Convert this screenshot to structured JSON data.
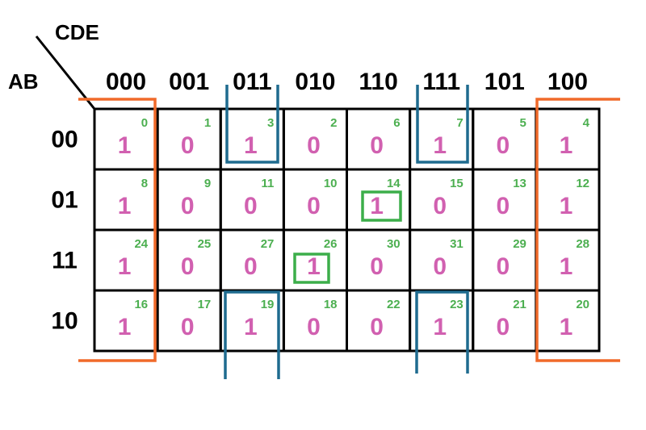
{
  "labels": {
    "columns_variable": "CDE",
    "rows_variable": "AB"
  },
  "columns": [
    "000",
    "001",
    "011",
    "010",
    "110",
    "111",
    "101",
    "100"
  ],
  "rows": [
    {
      "label": "00",
      "cells": [
        {
          "index": 0,
          "value": 1
        },
        {
          "index": 1,
          "value": 0
        },
        {
          "index": 3,
          "value": 1
        },
        {
          "index": 2,
          "value": 0
        },
        {
          "index": 6,
          "value": 0
        },
        {
          "index": 7,
          "value": 1
        },
        {
          "index": 5,
          "value": 0
        },
        {
          "index": 4,
          "value": 1
        }
      ]
    },
    {
      "label": "01",
      "cells": [
        {
          "index": 8,
          "value": 1
        },
        {
          "index": 9,
          "value": 0
        },
        {
          "index": 11,
          "value": 0
        },
        {
          "index": 10,
          "value": 0
        },
        {
          "index": 14,
          "value": 1
        },
        {
          "index": 15,
          "value": 0
        },
        {
          "index": 13,
          "value": 0
        },
        {
          "index": 12,
          "value": 1
        }
      ]
    },
    {
      "label": "11",
      "cells": [
        {
          "index": 24,
          "value": 1
        },
        {
          "index": 25,
          "value": 0
        },
        {
          "index": 27,
          "value": 0
        },
        {
          "index": 26,
          "value": 1
        },
        {
          "index": 30,
          "value": 0
        },
        {
          "index": 31,
          "value": 0
        },
        {
          "index": 29,
          "value": 0
        },
        {
          "index": 28,
          "value": 1
        }
      ]
    },
    {
      "label": "10",
      "cells": [
        {
          "index": 16,
          "value": 1
        },
        {
          "index": 17,
          "value": 0
        },
        {
          "index": 19,
          "value": 1
        },
        {
          "index": 18,
          "value": 0
        },
        {
          "index": 22,
          "value": 0
        },
        {
          "index": 23,
          "value": 1
        },
        {
          "index": 21,
          "value": 0
        },
        {
          "index": 20,
          "value": 1
        }
      ]
    }
  ]
}
